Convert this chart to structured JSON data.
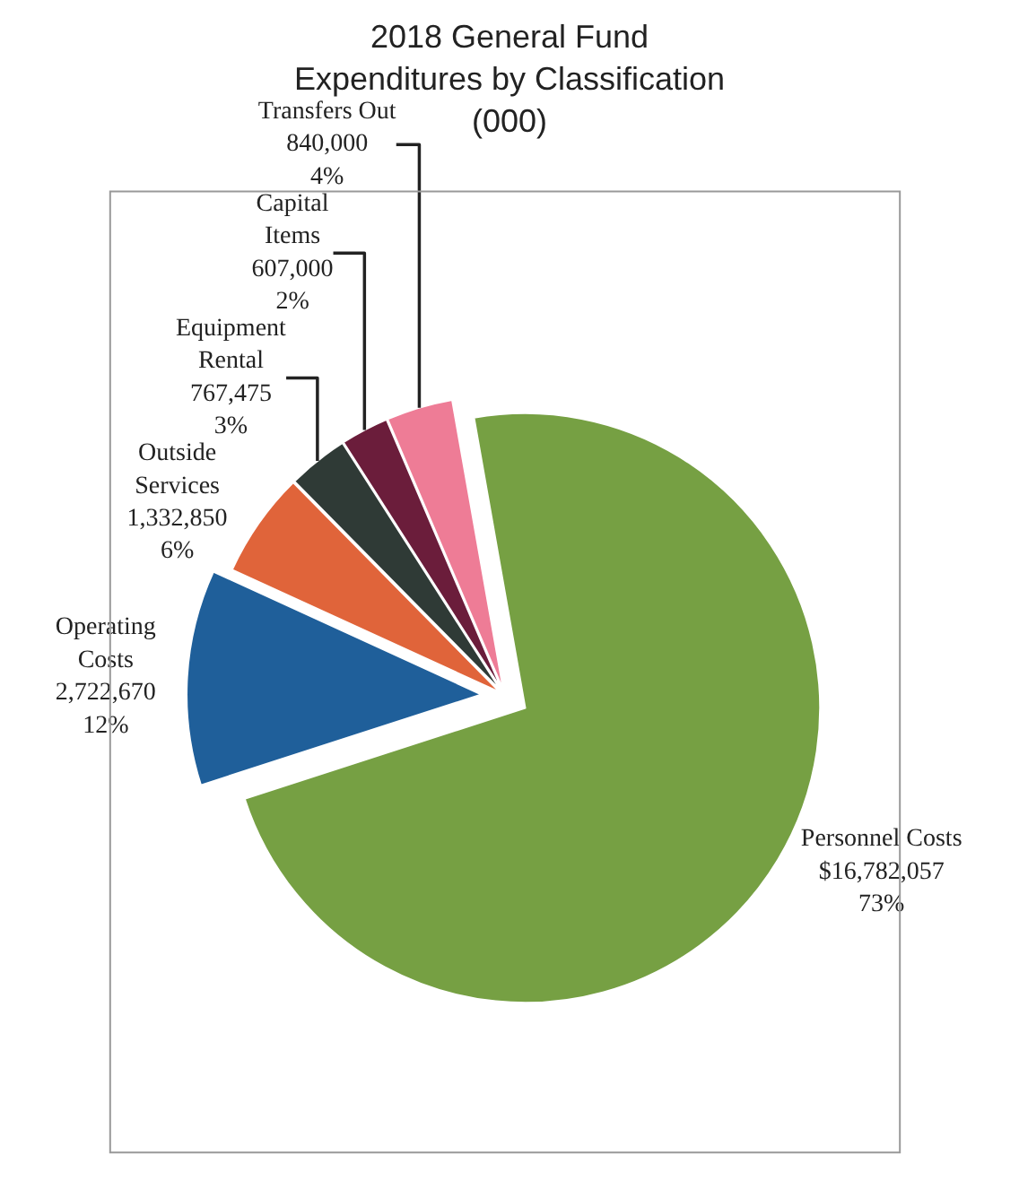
{
  "chart_data": {
    "type": "pie",
    "title": "2018 General Fund\nExpenditures by Classification\n(000)",
    "categories": [
      "Personnel Costs",
      "Operating\nCosts",
      "Outside\nServices",
      "Equipment\nRental",
      "Capital\nItems",
      "Transfers Out"
    ],
    "values": [
      16782057,
      2722670,
      1332850,
      767475,
      607000,
      840000
    ],
    "value_labels": [
      "$16,782,057\n73%",
      "2,722,670\n12%",
      "1,332,850\n6%",
      "767,475\n3%",
      "607,000\n2%",
      "840,000\n4%"
    ],
    "colors": [
      "#76a043",
      "#1f5f9a",
      "#e0643a",
      "#2f3a36",
      "#6b1d3b",
      "#ee7c96"
    ],
    "legend": false
  }
}
